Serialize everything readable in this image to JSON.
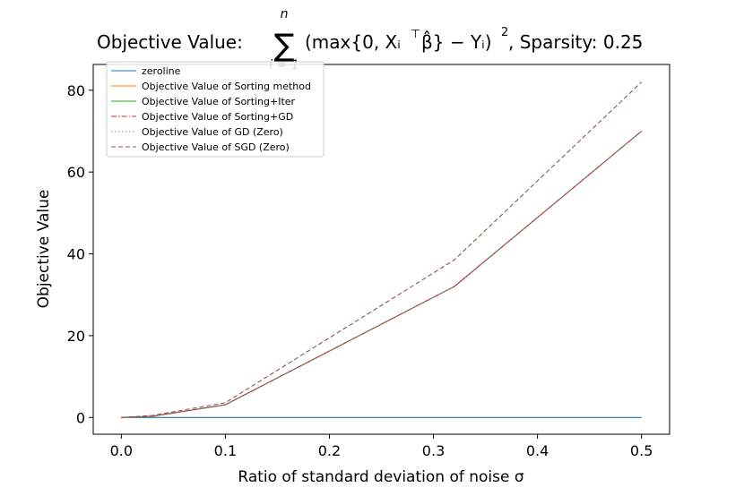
{
  "chart_data": {
    "type": "line",
    "title": {
      "prefix": "Objective Value: ",
      "sum_symbol": "∑",
      "sum_upper": "n",
      "sum_lower": "i = 1",
      "formula": "(max{0, Xᵢ",
      "formula_sup": "⊤",
      "formula_mid": "β̂} − Yᵢ)",
      "formula_sup2": "2",
      "suffix": ", Sparsity: 0.25"
    },
    "xlabel": "Ratio of standard deviation of noise σ",
    "ylabel": "Objective Value",
    "xlim": [
      -0.027,
      0.527
    ],
    "ylim": [
      -4.1,
      86.3
    ],
    "xticks": [
      0.0,
      0.1,
      0.2,
      0.3,
      0.4,
      0.5
    ],
    "xtick_labels": [
      "0.0",
      "0.1",
      "0.2",
      "0.3",
      "0.4",
      "0.5"
    ],
    "yticks": [
      0,
      20,
      40,
      60,
      80
    ],
    "ytick_labels": [
      "0",
      "20",
      "40",
      "60",
      "80"
    ],
    "x": [
      0.0,
      0.03,
      0.1,
      0.32,
      0.5
    ],
    "grid": false,
    "legend_position": "top-left",
    "series": [
      {
        "name": "zeroline",
        "values": [
          0,
          0,
          0,
          0,
          0
        ],
        "color": "#1f77b4",
        "dash": "solid"
      },
      {
        "name": "Objective Value of Sorting method",
        "values": [
          0,
          0.3,
          3.1,
          32.0,
          70.0
        ],
        "color": "#ff7f0e",
        "dash": "solid"
      },
      {
        "name": "Objective Value of Sorting+Iter",
        "values": [
          0,
          0.3,
          3.1,
          32.0,
          70.0
        ],
        "color": "#2ca02c",
        "dash": "solid"
      },
      {
        "name": "Objective Value of Sorting+GD",
        "values": [
          0,
          0.3,
          3.1,
          32.0,
          70.0
        ],
        "color": "#d62728",
        "dash": "dashdot"
      },
      {
        "name": "Objective Value of GD (Zero)",
        "values": [
          0,
          0.3,
          3.1,
          32.0,
          70.0
        ],
        "color": "#9467bd",
        "dash": "dotted"
      },
      {
        "name": "Objective Value of SGD (Zero)",
        "values": [
          0,
          0.5,
          3.6,
          38.5,
          82.0
        ],
        "color": "#8c564b",
        "dash": "dashed"
      }
    ]
  }
}
